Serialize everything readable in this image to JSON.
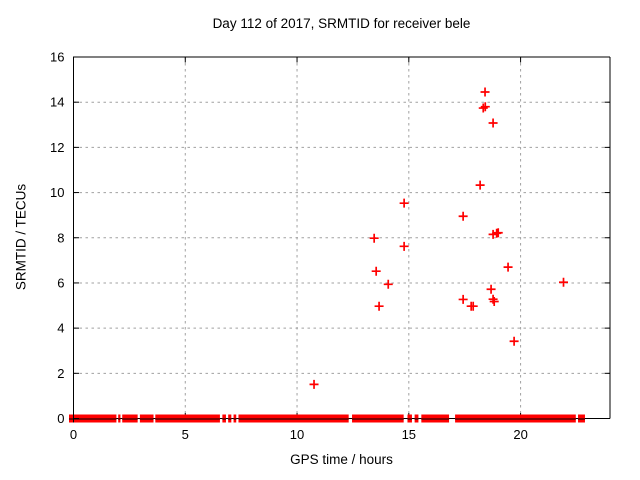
{
  "window": {
    "background": "#ffffff"
  },
  "colors": {
    "marker": "#ff0000",
    "grid": "#a0a0a0",
    "axis": "#000000",
    "band_core": "#6e0000",
    "text": "#000000",
    "background": "#ffffff"
  },
  "chart_data": {
    "type": "scatter",
    "title": "Day 112 of 2017, SRMTID for receiver bele",
    "xlabel": "GPS time / hours",
    "ylabel": "SRMTID / TECUs",
    "xlim": [
      0,
      24
    ],
    "ylim": [
      0,
      16
    ],
    "xticks": [
      0,
      5,
      10,
      15,
      20
    ],
    "yticks": [
      0,
      2,
      4,
      6,
      8,
      10,
      12,
      14,
      16
    ],
    "grid": true,
    "legend": "none",
    "marker": "plus",
    "series": [
      {
        "name": "SRMTID",
        "color": "#ff0000",
        "points": [
          [
            10.76,
            1.51
          ],
          [
            13.45,
            7.98
          ],
          [
            13.54,
            6.52
          ],
          [
            13.67,
            4.97
          ],
          [
            14.08,
            5.94
          ],
          [
            14.79,
            9.53
          ],
          [
            14.79,
            7.62
          ],
          [
            17.43,
            8.95
          ],
          [
            17.43,
            5.27
          ],
          [
            17.79,
            4.97
          ],
          [
            17.88,
            4.97
          ],
          [
            18.19,
            10.33
          ],
          [
            18.41,
            14.45
          ],
          [
            18.33,
            13.74
          ],
          [
            18.42,
            13.8
          ],
          [
            18.77,
            13.08
          ],
          [
            18.77,
            8.15
          ],
          [
            18.93,
            8.2
          ],
          [
            19.0,
            8.22
          ],
          [
            18.68,
            5.72
          ],
          [
            18.77,
            5.28
          ],
          [
            18.82,
            5.18
          ],
          [
            19.44,
            6.7
          ],
          [
            19.71,
            3.42
          ],
          [
            21.92,
            6.03
          ]
        ]
      }
    ],
    "zero_value_runs": [
      [
        0.0,
        1.92
      ],
      [
        2.0,
        2.1
      ],
      [
        2.18,
        2.87
      ],
      [
        2.97,
        3.58
      ],
      [
        3.66,
        6.55
      ],
      [
        6.66,
        6.82
      ],
      [
        6.92,
        7.06
      ],
      [
        7.16,
        7.28
      ],
      [
        7.38,
        12.31
      ],
      [
        12.46,
        14.77
      ],
      [
        14.94,
        15.14
      ],
      [
        15.26,
        15.43
      ],
      [
        15.56,
        16.8
      ],
      [
        17.07,
        22.47
      ],
      [
        22.57,
        22.88
      ]
    ]
  }
}
